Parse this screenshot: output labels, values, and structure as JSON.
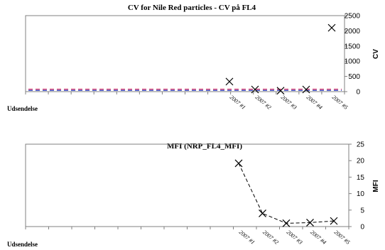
{
  "row_label": "Udsendelse",
  "chart_data": [
    {
      "type": "scatter",
      "title": "CV for Nile Red particles - CV på FL4",
      "ylabel": "CV",
      "ylim": [
        0,
        2500
      ],
      "yticks": [
        0,
        500,
        1000,
        1500,
        2000,
        2500
      ],
      "grid": false,
      "categories": [
        "2007 #1",
        "2007 #2",
        "2007 #3",
        "2007 #4",
        "2007 #5"
      ],
      "values": [
        330,
        70,
        30,
        70,
        2100
      ],
      "reference_lines": [
        {
          "value": 80,
          "color": "#e0507a",
          "style": "dashed"
        },
        {
          "value": 40,
          "color": "#4a5fcf",
          "style": "dashed"
        }
      ],
      "marker": "x"
    },
    {
      "type": "line",
      "title": "MFI (NRP_FL4_MFI)",
      "ylabel": "MFI",
      "ylim": [
        0,
        25
      ],
      "yticks": [
        0,
        5,
        10,
        15,
        20,
        25
      ],
      "grid": false,
      "categories": [
        "2007 #1",
        "2007 #2",
        "2007 #3",
        "2007 #4",
        "2007 #5"
      ],
      "values": [
        19.2,
        4.0,
        1.0,
        1.2,
        1.7
      ],
      "line_style": "dashed",
      "marker": "x"
    }
  ]
}
